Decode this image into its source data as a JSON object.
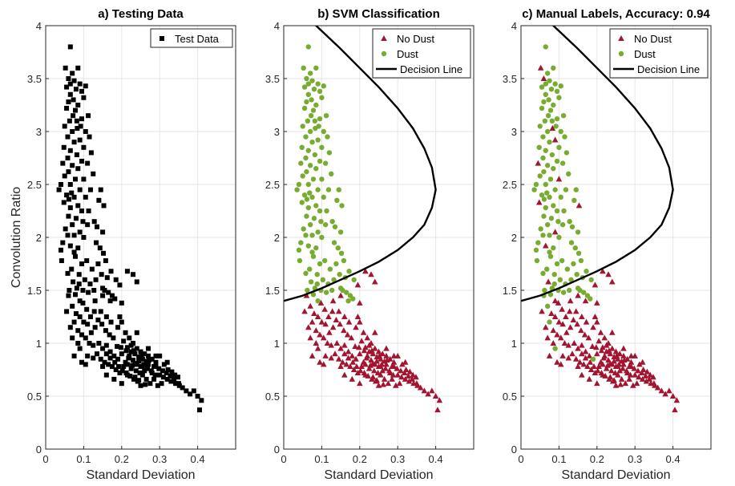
{
  "chart_data": [
    {
      "type": "scatter",
      "title": "a) Testing Data",
      "xlabel": "Standard Deviation",
      "ylabel": "Convolution Ratio",
      "xlim": [
        0,
        0.5
      ],
      "ylim": [
        0,
        4
      ],
      "xticks": [
        "0",
        "0.1",
        "0.2",
        "0.3",
        "0.4"
      ],
      "yticks": [
        "0",
        "0.5",
        "1",
        "1.5",
        "2",
        "2.5",
        "3",
        "3.5",
        "4"
      ],
      "grid": true,
      "legend_position": "top-right",
      "series": [
        {
          "name": "Test Data",
          "marker": "square",
          "color": "#000000",
          "source": "all_points"
        }
      ]
    },
    {
      "type": "scatter",
      "title": "b) SVM Classification",
      "xlabel": "Standard Deviation",
      "ylabel": "",
      "xlim": [
        0,
        0.5
      ],
      "ylim": [
        0,
        4
      ],
      "xticks": [
        "0",
        "0.1",
        "0.2",
        "0.3",
        "0.4"
      ],
      "yticks": [
        "0",
        "0.5",
        "1",
        "1.5",
        "2",
        "2.5",
        "3",
        "3.5",
        "4"
      ],
      "grid": true,
      "legend_position": "top-right",
      "series": [
        {
          "name": "No Dust",
          "marker": "triangle",
          "color": "#a2142f",
          "source": "svm_no_dust"
        },
        {
          "name": "Dust",
          "marker": "circle",
          "color": "#77ac30",
          "source": "svm_dust"
        },
        {
          "name": "Decision Line",
          "marker": "line",
          "color": "#000000",
          "source": "decision_line"
        }
      ]
    },
    {
      "type": "scatter",
      "title": "c) Manual Labels, Accuracy: 0.94",
      "xlabel": "Standard Deviation",
      "ylabel": "",
      "xlim": [
        0,
        0.5
      ],
      "ylim": [
        0,
        4
      ],
      "xticks": [
        "0",
        "0.1",
        "0.2",
        "0.3",
        "0.4"
      ],
      "yticks": [
        "0",
        "0.5",
        "1",
        "1.5",
        "2",
        "2.5",
        "3",
        "3.5",
        "4"
      ],
      "grid": true,
      "legend_position": "top-right",
      "series": [
        {
          "name": "No Dust",
          "marker": "triangle",
          "color": "#a2142f",
          "source": "manual_no_dust"
        },
        {
          "name": "Dust",
          "marker": "circle",
          "color": "#77ac30",
          "source": "manual_dust"
        },
        {
          "name": "Decision Line",
          "marker": "line",
          "color": "#000000",
          "source": "decision_line"
        }
      ]
    }
  ],
  "points": {
    "upper": [
      [
        0.065,
        3.8
      ],
      [
        0.07,
        3.55
      ],
      [
        0.085,
        3.6
      ],
      [
        0.06,
        3.5
      ],
      [
        0.075,
        3.48
      ],
      [
        0.09,
        3.45
      ],
      [
        0.055,
        3.42
      ],
      [
        0.08,
        3.4
      ],
      [
        0.105,
        3.43
      ],
      [
        0.095,
        3.38
      ],
      [
        0.065,
        3.35
      ],
      [
        0.073,
        3.3
      ],
      [
        0.1,
        3.32
      ],
      [
        0.06,
        3.28
      ],
      [
        0.085,
        3.25
      ],
      [
        0.055,
        3.22
      ],
      [
        0.078,
        3.2
      ],
      [
        0.112,
        3.15
      ],
      [
        0.095,
        3.12
      ],
      [
        0.063,
        3.1
      ],
      [
        0.05,
        3.05
      ],
      [
        0.083,
        3.03
      ],
      [
        0.07,
        3.0
      ],
      [
        0.105,
        3.0
      ],
      [
        0.058,
        2.95
      ],
      [
        0.09,
        2.92
      ],
      [
        0.075,
        2.9
      ],
      [
        0.048,
        2.85
      ],
      [
        0.1,
        2.85
      ],
      [
        0.065,
        2.82
      ],
      [
        0.082,
        2.78
      ],
      [
        0.058,
        2.75
      ],
      [
        0.095,
        2.72
      ],
      [
        0.045,
        2.7
      ],
      [
        0.07,
        2.68
      ],
      [
        0.11,
        2.7
      ],
      [
        0.085,
        2.65
      ],
      [
        0.06,
        2.62
      ],
      [
        0.05,
        2.58
      ],
      [
        0.078,
        2.55
      ],
      [
        0.1,
        2.55
      ],
      [
        0.065,
        2.5
      ],
      [
        0.035,
        2.45
      ],
      [
        0.09,
        2.45
      ],
      [
        0.055,
        2.4
      ],
      [
        0.075,
        2.38
      ],
      [
        0.105,
        2.38
      ],
      [
        0.048,
        2.33
      ],
      [
        0.085,
        2.3
      ],
      [
        0.065,
        2.28
      ],
      [
        0.095,
        2.25
      ],
      [
        0.06,
        2.2
      ],
      [
        0.08,
        2.18
      ],
      [
        0.07,
        2.12
      ],
      [
        0.11,
        2.12
      ],
      [
        0.052,
        2.08
      ],
      [
        0.09,
        2.05
      ],
      [
        0.075,
        2.02
      ],
      [
        0.1,
        2.0
      ],
      [
        0.045,
        1.95
      ],
      [
        0.065,
        1.92
      ],
      [
        0.085,
        1.9
      ],
      [
        0.04,
        1.88
      ],
      [
        0.078,
        1.82
      ],
      [
        0.095,
        1.75
      ],
      [
        0.068,
        1.7
      ],
      [
        0.088,
        1.65
      ],
      [
        0.072,
        1.58
      ],
      [
        0.082,
        1.52
      ],
      [
        0.062,
        1.5
      ],
      [
        0.098,
        1.5
      ],
      [
        0.078,
        1.46
      ],
      [
        0.09,
        1.4
      ],
      [
        0.065,
        3.45
      ],
      [
        0.072,
        3.15
      ],
      [
        0.092,
        3.05
      ],
      [
        0.115,
        2.95
      ],
      [
        0.04,
        2.5
      ],
      [
        0.068,
        2.42
      ],
      [
        0.098,
        2.15
      ],
      [
        0.058,
        2.02
      ],
      [
        0.042,
        1.78
      ],
      [
        0.103,
        1.6
      ],
      [
        0.075,
        1.86
      ],
      [
        0.058,
        1.66
      ],
      [
        0.088,
        1.56
      ],
      [
        0.052,
        3.6
      ],
      [
        0.12,
        2.8
      ],
      [
        0.082,
        3.1
      ],
      [
        0.061,
        2.36
      ],
      [
        0.135,
        2.1
      ],
      [
        0.145,
        2.45
      ],
      [
        0.15,
        2.05
      ],
      [
        0.14,
        2.35
      ],
      [
        0.125,
        2.6
      ],
      [
        0.113,
        2.25
      ],
      [
        0.118,
        2.45
      ],
      [
        0.128,
        2.15
      ],
      [
        0.153,
        2.3
      ],
      [
        0.133,
        1.95
      ],
      [
        0.143,
        1.9
      ],
      [
        0.158,
        1.78
      ],
      [
        0.147,
        1.65
      ],
      [
        0.15,
        1.52
      ],
      [
        0.155,
        1.5
      ],
      [
        0.175,
        1.45
      ],
      [
        0.165,
        1.48
      ],
      [
        0.17,
        1.4
      ],
      [
        0.138,
        1.75
      ],
      [
        0.152,
        1.85
      ],
      [
        0.108,
        1.78
      ],
      [
        0.122,
        1.7
      ],
      [
        0.132,
        1.6
      ],
      [
        0.117,
        1.56
      ],
      [
        0.127,
        1.5
      ],
      [
        0.185,
        1.6
      ],
      [
        0.182,
        1.42
      ],
      [
        0.162,
        1.62
      ],
      [
        0.172,
        1.68
      ],
      [
        0.112,
        1.48
      ]
    ],
    "lower": [
      [
        0.06,
        1.45
      ],
      [
        0.07,
        1.35
      ],
      [
        0.055,
        1.3
      ],
      [
        0.08,
        1.28
      ],
      [
        0.09,
        1.25
      ],
      [
        0.075,
        1.2
      ],
      [
        0.065,
        1.15
      ],
      [
        0.1,
        1.2
      ],
      [
        0.11,
        1.18
      ],
      [
        0.085,
        1.12
      ],
      [
        0.095,
        1.08
      ],
      [
        0.12,
        1.1
      ],
      [
        0.13,
        1.15
      ],
      [
        0.105,
        1.05
      ],
      [
        0.115,
        1.0
      ],
      [
        0.125,
        0.98
      ],
      [
        0.09,
        0.95
      ],
      [
        0.14,
        1.0
      ],
      [
        0.15,
        0.95
      ],
      [
        0.135,
        0.9
      ],
      [
        0.16,
        0.98
      ],
      [
        0.11,
        0.88
      ],
      [
        0.145,
        0.85
      ],
      [
        0.17,
        0.92
      ],
      [
        0.155,
        0.82
      ],
      [
        0.18,
        0.88
      ],
      [
        0.165,
        0.8
      ],
      [
        0.19,
        0.85
      ],
      [
        0.175,
        0.78
      ],
      [
        0.2,
        0.9
      ],
      [
        0.185,
        0.75
      ],
      [
        0.21,
        0.82
      ],
      [
        0.195,
        0.72
      ],
      [
        0.22,
        0.88
      ],
      [
        0.205,
        0.78
      ],
      [
        0.23,
        0.84
      ],
      [
        0.215,
        0.7
      ],
      [
        0.24,
        0.8
      ],
      [
        0.225,
        0.76
      ],
      [
        0.25,
        0.78
      ],
      [
        0.235,
        0.68
      ],
      [
        0.26,
        0.74
      ],
      [
        0.245,
        0.65
      ],
      [
        0.27,
        0.8
      ],
      [
        0.255,
        0.7
      ],
      [
        0.28,
        0.72
      ],
      [
        0.265,
        0.66
      ],
      [
        0.29,
        0.78
      ],
      [
        0.275,
        0.62
      ],
      [
        0.3,
        0.7
      ],
      [
        0.285,
        0.66
      ],
      [
        0.31,
        0.68
      ],
      [
        0.295,
        0.6
      ],
      [
        0.32,
        0.66
      ],
      [
        0.305,
        0.62
      ],
      [
        0.33,
        0.64
      ],
      [
        0.34,
        0.7
      ],
      [
        0.35,
        0.62
      ],
      [
        0.36,
        0.58
      ],
      [
        0.37,
        0.55
      ],
      [
        0.38,
        0.52
      ],
      [
        0.39,
        0.55
      ],
      [
        0.4,
        0.5
      ],
      [
        0.41,
        0.46
      ],
      [
        0.405,
        0.37
      ],
      [
        0.2,
        1.2
      ],
      [
        0.21,
        1.1
      ],
      [
        0.22,
        1.05
      ],
      [
        0.23,
        1.0
      ],
      [
        0.24,
        0.95
      ],
      [
        0.25,
        0.92
      ],
      [
        0.26,
        0.9
      ],
      [
        0.27,
        0.88
      ],
      [
        0.28,
        0.85
      ],
      [
        0.29,
        0.82
      ],
      [
        0.225,
        0.98
      ],
      [
        0.235,
        0.9
      ],
      [
        0.245,
        0.87
      ],
      [
        0.255,
        0.85
      ],
      [
        0.265,
        0.83
      ],
      [
        0.198,
        0.96
      ],
      [
        0.212,
        0.93
      ],
      [
        0.218,
        0.86
      ],
      [
        0.228,
        0.79
      ],
      [
        0.238,
        0.74
      ],
      [
        0.248,
        0.72
      ],
      [
        0.258,
        0.8
      ],
      [
        0.268,
        0.76
      ],
      [
        0.278,
        0.74
      ],
      [
        0.288,
        0.7
      ],
      [
        0.178,
        1.05
      ],
      [
        0.188,
        0.97
      ],
      [
        0.168,
        1.08
      ],
      [
        0.158,
        1.12
      ],
      [
        0.148,
        1.18
      ],
      [
        0.138,
        1.22
      ],
      [
        0.128,
        1.3
      ],
      [
        0.118,
        1.25
      ],
      [
        0.108,
        1.32
      ],
      [
        0.098,
        1.38
      ],
      [
        0.145,
        1.3
      ],
      [
        0.16,
        1.25
      ],
      [
        0.172,
        1.2
      ],
      [
        0.19,
        1.15
      ],
      [
        0.205,
        1.02
      ],
      [
        0.215,
        0.96
      ],
      [
        0.232,
        0.93
      ],
      [
        0.252,
        0.88
      ],
      [
        0.272,
        0.84
      ],
      [
        0.298,
        0.76
      ],
      [
        0.308,
        0.74
      ],
      [
        0.318,
        0.72
      ],
      [
        0.328,
        0.69
      ],
      [
        0.338,
        0.66
      ],
      [
        0.348,
        0.68
      ],
      [
        0.312,
        0.8
      ],
      [
        0.322,
        0.75
      ],
      [
        0.332,
        0.73
      ],
      [
        0.342,
        0.62
      ],
      [
        0.352,
        0.6
      ],
      [
        0.16,
        0.9
      ],
      [
        0.17,
        0.86
      ],
      [
        0.182,
        0.82
      ],
      [
        0.192,
        0.78
      ],
      [
        0.202,
        0.74
      ],
      [
        0.212,
        0.72
      ],
      [
        0.222,
        0.69
      ],
      [
        0.232,
        0.66
      ],
      [
        0.242,
        0.64
      ],
      [
        0.262,
        0.61
      ],
      [
        0.195,
        1.25
      ],
      [
        0.24,
        1.1
      ],
      [
        0.27,
        0.95
      ],
      [
        0.3,
        0.88
      ],
      [
        0.225,
        0.92
      ],
      [
        0.255,
        0.78
      ],
      [
        0.285,
        0.78
      ],
      [
        0.245,
        0.83
      ],
      [
        0.235,
        0.81
      ],
      [
        0.215,
        0.8
      ],
      [
        0.075,
        0.88
      ],
      [
        0.095,
        0.82
      ],
      [
        0.085,
        1.0
      ],
      [
        0.07,
        1.05
      ],
      [
        0.105,
        0.8
      ],
      [
        0.125,
        0.86
      ],
      [
        0.15,
        0.78
      ],
      [
        0.16,
        0.7
      ],
      [
        0.18,
        0.66
      ],
      [
        0.2,
        0.62
      ],
      [
        0.13,
        1.4
      ],
      [
        0.15,
        1.45
      ],
      [
        0.2,
        1.38
      ],
      [
        0.215,
        1.68
      ],
      [
        0.195,
        1.55
      ],
      [
        0.23,
        1.65
      ],
      [
        0.24,
        1.58
      ],
      [
        0.25,
        0.6
      ],
      [
        0.29,
        0.88
      ],
      [
        0.32,
        0.82
      ]
    ],
    "manual_upper_red_idx": [
      3,
      21,
      25,
      33,
      40,
      47,
      56,
      60,
      67,
      72,
      86,
      98,
      107
    ],
    "manual_lower_green_idx": [
      0,
      1,
      5,
      16,
      27
    ]
  },
  "decision_line": {
    "x": [
      0.0,
      0.05,
      0.1,
      0.15,
      0.2,
      0.25,
      0.3,
      0.34,
      0.37,
      0.39,
      0.4,
      0.39,
      0.37,
      0.34,
      0.3,
      0.25,
      0.2,
      0.15,
      0.1,
      0.07
    ],
    "y": [
      1.4,
      1.45,
      1.52,
      1.6,
      1.68,
      1.77,
      1.88,
      2.0,
      2.12,
      2.28,
      2.45,
      2.66,
      2.84,
      3.03,
      3.22,
      3.42,
      3.6,
      3.78,
      3.95,
      4.05
    ]
  }
}
